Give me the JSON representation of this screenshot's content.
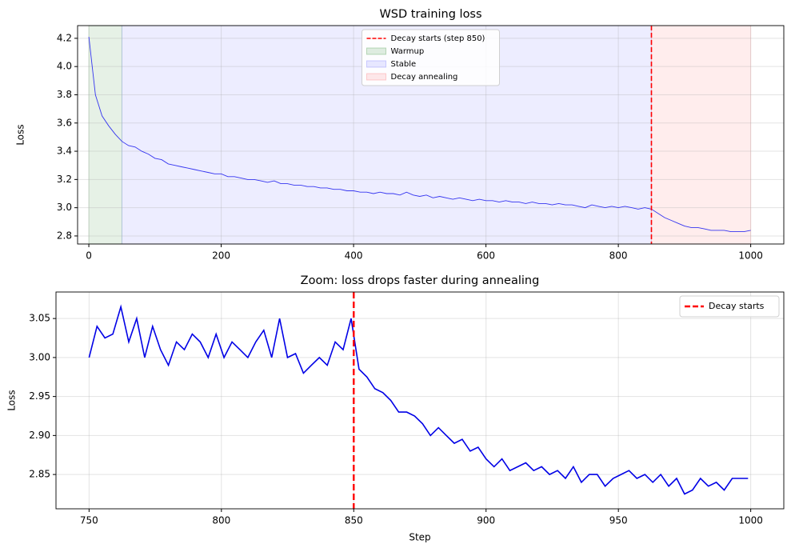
{
  "chart_data": [
    {
      "type": "line",
      "title": "WSD training loss",
      "ylabel": "Loss",
      "x": [
        0,
        10,
        20,
        30,
        40,
        50,
        60,
        70,
        80,
        90,
        100,
        110,
        120,
        130,
        140,
        150,
        160,
        170,
        180,
        190,
        200,
        210,
        220,
        230,
        240,
        250,
        260,
        270,
        280,
        290,
        300,
        310,
        320,
        330,
        340,
        350,
        360,
        370,
        380,
        390,
        400,
        410,
        420,
        430,
        440,
        450,
        460,
        470,
        480,
        490,
        500,
        510,
        520,
        530,
        540,
        550,
        560,
        570,
        580,
        590,
        600,
        610,
        620,
        630,
        640,
        650,
        660,
        670,
        680,
        690,
        700,
        710,
        720,
        730,
        740,
        750,
        760,
        770,
        780,
        790,
        800,
        810,
        820,
        830,
        840,
        850,
        860,
        870,
        880,
        890,
        900,
        910,
        920,
        930,
        940,
        950,
        960,
        970,
        980,
        990,
        1000
      ],
      "series": [
        {
          "color": "#3535f0",
          "values": [
            4.21,
            3.8,
            3.65,
            3.58,
            3.52,
            3.47,
            3.44,
            3.43,
            3.4,
            3.38,
            3.35,
            3.34,
            3.31,
            3.3,
            3.29,
            3.28,
            3.27,
            3.26,
            3.25,
            3.24,
            3.24,
            3.22,
            3.22,
            3.21,
            3.2,
            3.2,
            3.19,
            3.18,
            3.19,
            3.17,
            3.17,
            3.16,
            3.16,
            3.15,
            3.15,
            3.14,
            3.14,
            3.13,
            3.13,
            3.12,
            3.12,
            3.11,
            3.11,
            3.1,
            3.11,
            3.1,
            3.1,
            3.09,
            3.11,
            3.09,
            3.08,
            3.09,
            3.07,
            3.08,
            3.07,
            3.06,
            3.07,
            3.06,
            3.05,
            3.06,
            3.05,
            3.05,
            3.04,
            3.05,
            3.04,
            3.04,
            3.03,
            3.04,
            3.03,
            3.03,
            3.02,
            3.03,
            3.02,
            3.02,
            3.01,
            3.0,
            3.02,
            3.01,
            3.0,
            3.01,
            3.0,
            3.01,
            3.0,
            2.99,
            3.0,
            2.99,
            2.96,
            2.93,
            2.91,
            2.89,
            2.87,
            2.86,
            2.86,
            2.85,
            2.84,
            2.84,
            2.84,
            2.83,
            2.83,
            2.83,
            2.84
          ]
        }
      ],
      "spans": [
        {
          "name": "Warmup",
          "start": 0,
          "end": 50,
          "color": "#2e8b2e"
        },
        {
          "name": "Stable",
          "start": 50,
          "end": 850,
          "color": "#6a6aff"
        },
        {
          "name": "Decay annealing",
          "start": 850,
          "end": 1000,
          "color": "#ff6a6a"
        }
      ],
      "vline": {
        "name": "Decay starts (step 850)",
        "x": 850,
        "color": "#ff0000"
      },
      "xlim": [
        -17,
        1050
      ],
      "xticks": [
        0,
        200,
        400,
        600,
        800,
        1000
      ],
      "ylim": [
        2.743,
        4.29
      ],
      "yticks": [
        2.8,
        {
          "value": 3,
          "label": "3.0"
        },
        3.2,
        3.4,
        3.6,
        3.8,
        {
          "value": 4,
          "label": "4.0"
        },
        4.2
      ],
      "grid": true,
      "legend": "upper center"
    },
    {
      "type": "line",
      "title": "Zoom: loss drops faster during annealing",
      "xlabel": "Step",
      "ylabel": "Loss",
      "x": [
        750,
        753,
        756,
        759,
        762,
        765,
        768,
        771,
        774,
        777,
        780,
        783,
        786,
        789,
        792,
        795,
        798,
        801,
        804,
        807,
        810,
        813,
        816,
        819,
        822,
        825,
        828,
        831,
        834,
        837,
        840,
        843,
        846,
        849,
        852,
        855,
        858,
        861,
        864,
        867,
        870,
        873,
        876,
        879,
        882,
        885,
        888,
        891,
        894,
        897,
        900,
        903,
        906,
        909,
        912,
        915,
        918,
        921,
        924,
        927,
        930,
        933,
        936,
        939,
        942,
        945,
        948,
        951,
        954,
        957,
        960,
        963,
        966,
        969,
        972,
        975,
        978,
        981,
        984,
        987,
        990,
        993,
        996,
        999
      ],
      "series": [
        {
          "color": "#0000e6",
          "values": [
            3.0,
            3.04,
            3.025,
            3.03,
            3.065,
            3.02,
            3.05,
            3.0,
            3.04,
            3.01,
            2.99,
            3.02,
            3.01,
            3.03,
            3.02,
            3.0,
            3.03,
            3.0,
            3.02,
            3.01,
            3.0,
            3.02,
            3.035,
            3.0,
            3.05,
            3.0,
            3.005,
            2.98,
            2.99,
            3.0,
            2.99,
            3.02,
            3.01,
            3.05,
            2.985,
            2.975,
            2.96,
            2.955,
            2.945,
            2.93,
            2.93,
            2.925,
            2.915,
            2.9,
            2.91,
            2.9,
            2.89,
            2.895,
            2.88,
            2.885,
            2.87,
            2.86,
            2.87,
            2.855,
            2.86,
            2.865,
            2.855,
            2.86,
            2.85,
            2.855,
            2.845,
            2.86,
            2.84,
            2.85,
            2.85,
            2.835,
            2.845,
            2.85,
            2.855,
            2.845,
            2.85,
            2.84,
            2.85,
            2.835,
            2.845,
            2.825,
            2.83,
            2.845,
            2.835,
            2.84,
            2.83,
            2.845,
            2.845,
            2.845
          ]
        }
      ],
      "vline": {
        "name": "Decay starts",
        "x": 850,
        "color": "#ff0000"
      },
      "xlim": [
        737.5,
        1012.5
      ],
      "xticks": [
        750,
        800,
        850,
        900,
        950,
        1000
      ],
      "ylim": [
        2.806,
        3.084
      ],
      "yticks": [
        2.85,
        {
          "value": 2.9,
          "label": "2.90"
        },
        2.95,
        {
          "value": 3,
          "label": "3.00"
        },
        3.05
      ],
      "grid": true,
      "legend": "upper right"
    }
  ]
}
